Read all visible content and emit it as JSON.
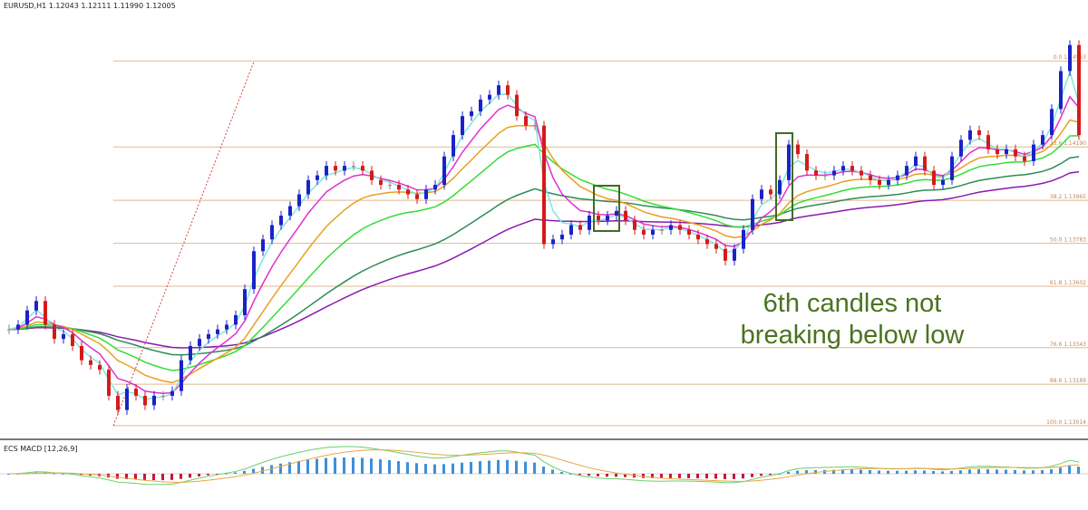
{
  "header": {
    "symbol_line": "EURUSD,H1  1.12043 1.12111 1.11990 1.12005"
  },
  "macd": {
    "title": "ECS MACD [12,26,9]",
    "up_color": "#3d8fd9",
    "down_color": "#c8163a",
    "signal_color": "#e8a840",
    "main_color": "#6ccf6c"
  },
  "annotation": {
    "line1": "6th candles not",
    "line2": "breaking below low",
    "color": "#4a7320"
  },
  "chart_data": {
    "type": "candlestick",
    "title": "EURUSD,H1",
    "ylim": [
      1.1296,
      1.1481
    ],
    "grid": false,
    "candle_colors": {
      "up": "#1a22c8",
      "down": "#d61a1a",
      "neutral": "#888888"
    },
    "closes": [
      1.1342,
      1.1344,
      1.135,
      1.1354,
      1.1344,
      1.1338,
      1.134,
      1.1335,
      1.1329,
      1.1327,
      1.1325,
      1.1314,
      1.1308,
      1.1317,
      1.1314,
      1.131,
      1.1314,
      1.1314,
      1.1316,
      1.1329,
      1.1335,
      1.1338,
      1.134,
      1.1342,
      1.1344,
      1.1348,
      1.1359,
      1.1375,
      1.138,
      1.1386,
      1.139,
      1.1394,
      1.1399,
      1.1405,
      1.1407,
      1.1411,
      1.1409,
      1.1411,
      1.1411,
      1.1409,
      1.1405,
      1.1403,
      1.1403,
      1.1401,
      1.1399,
      1.1397,
      1.1401,
      1.1403,
      1.1415,
      1.1424,
      1.1432,
      1.1434,
      1.1439,
      1.1441,
      1.1445,
      1.1441,
      1.1432,
      1.1428,
      1.1428,
      1.1378,
      1.138,
      1.1382,
      1.1386,
      1.1384,
      1.139,
      1.1388,
      1.139,
      1.1392,
      1.1388,
      1.1384,
      1.1382,
      1.1384,
      1.1384,
      1.1386,
      1.1384,
      1.1382,
      1.138,
      1.1378,
      1.1376,
      1.1371,
      1.1376,
      1.1384,
      1.1397,
      1.1401,
      1.1399,
      1.1405,
      1.142,
      1.1416,
      1.1409,
      1.1407,
      1.1407,
      1.1409,
      1.1411,
      1.1409,
      1.1407,
      1.1405,
      1.1403,
      1.1405,
      1.1407,
      1.1411,
      1.1415,
      1.1409,
      1.1403,
      1.1405,
      1.1415,
      1.1422,
      1.1426,
      1.1424,
      1.1418,
      1.1416,
      1.1418,
      1.1415,
      1.1413,
      1.142,
      1.1424,
      1.1435,
      1.1451,
      1.1462,
      1.1424
    ],
    "moving_averages": [
      {
        "color": "#8a1ab0"
      },
      {
        "color": "#2e8b57"
      },
      {
        "color": "#33dd33"
      },
      {
        "color": "#e8a020"
      },
      {
        "color": "#e030d0"
      },
      {
        "color": "#7fe6e0"
      }
    ],
    "fibonacci": {
      "color": "#e0b890",
      "levels": [
        {
          "price": 1.14553,
          "label": "0.0 1.14553"
        },
        {
          "price": 1.1419,
          "label": "23.6 1.14190"
        },
        {
          "price": 1.13965,
          "label": "38.2 1.13965"
        },
        {
          "price": 1.13783,
          "label": "50.0 1.13783"
        },
        {
          "price": 1.13602,
          "label": "61.8 1.13602"
        },
        {
          "price": 1.13343,
          "label": "76.6 1.13343"
        },
        {
          "price": 1.13189,
          "label": "88.6 1.13189"
        },
        {
          "price": 1.13014,
          "label": "100.0 1.13014"
        }
      ]
    }
  }
}
